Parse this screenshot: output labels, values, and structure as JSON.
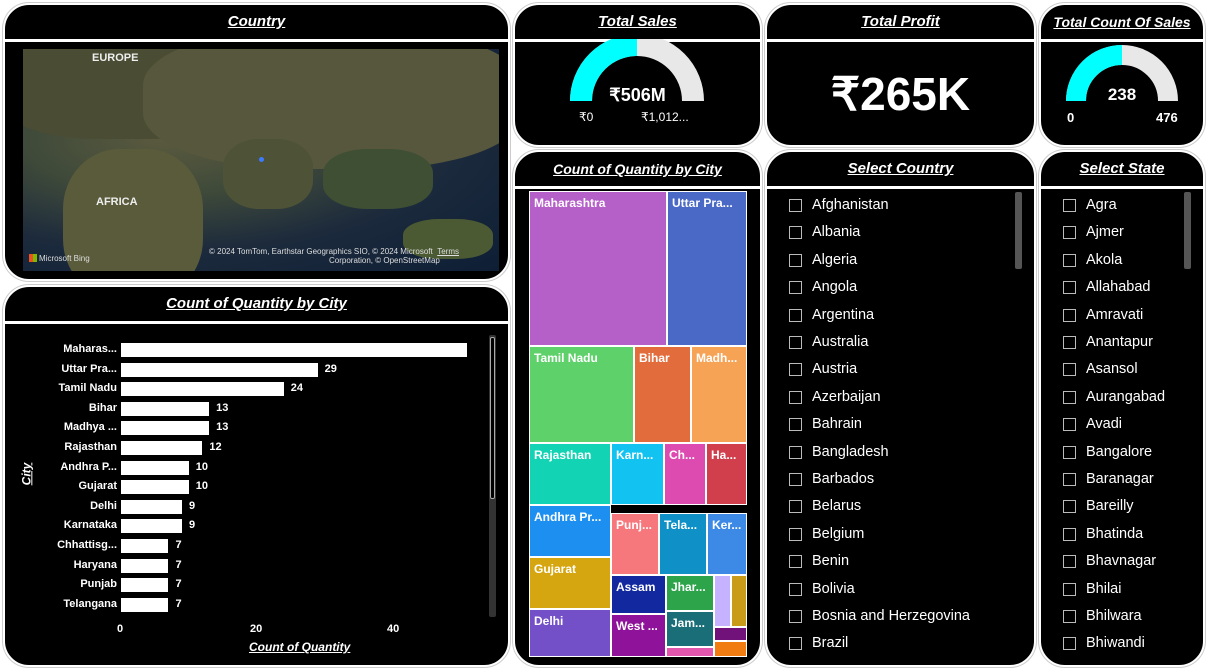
{
  "country_panel": {
    "title": "Country",
    "labels": {
      "europe": "EUROPE",
      "africa": "AFRICA"
    },
    "bing": "Microsoft Bing",
    "attribution_1": "© 2024 TomTom, Earthstar Geographics SIO, © 2024 Microsoft",
    "terms": "Terms",
    "attribution_2": "Corporation, © OpenStreetMap"
  },
  "total_sales": {
    "title": "Total Sales",
    "value": "₹506M",
    "min": "₹0",
    "max": "₹1,012...",
    "fraction": 0.5
  },
  "total_profit": {
    "title": "Total Profit",
    "value": "₹265K"
  },
  "total_count": {
    "title": "Total Count Of Sales",
    "value": "238",
    "min": "0",
    "max": "476",
    "fraction": 0.5
  },
  "bar_chart": {
    "title": "Count of Quantity by City",
    "ylabel": "City",
    "xlabel": "Count of Quantity",
    "ticks": [
      "0",
      "20",
      "40"
    ]
  },
  "chart_data": [
    {
      "type": "bar",
      "title": "Count of Quantity by City",
      "xlabel": "Count of Quantity",
      "ylabel": "City",
      "orientation": "horizontal",
      "xlim": [
        0,
        50
      ],
      "categories": [
        "Maharas...",
        "Uttar Pra...",
        "Tamil Nadu",
        "Bihar",
        "Madhya ...",
        "Rajasthan",
        "Andhra P...",
        "Gujarat",
        "Delhi",
        "Karnataka",
        "Chhattisg...",
        "Haryana",
        "Punjab",
        "Telangana"
      ],
      "values": [
        51,
        29,
        24,
        13,
        13,
        12,
        10,
        10,
        9,
        9,
        7,
        7,
        7,
        7
      ],
      "labels": [
        "",
        "29",
        "24",
        "13",
        "13",
        "12",
        "10",
        "10",
        "9",
        "9",
        "7",
        "7",
        "7",
        "7"
      ]
    }
  ],
  "treemap": {
    "title": "Count of Quantity by City",
    "cells": [
      {
        "label": "Maharashtra",
        "color": "#b55fc9"
      },
      {
        "label": "Uttar Pra...",
        "color": "#4a68c5"
      },
      {
        "label": "Tamil Nadu",
        "color": "#5fd16b"
      },
      {
        "label": "Bihar",
        "color": "#e36c3c"
      },
      {
        "label": "Madh...",
        "color": "#f6a356"
      },
      {
        "label": "Rajasthan",
        "color": "#12d3b3"
      },
      {
        "label": "Karn...",
        "color": "#12c2f0"
      },
      {
        "label": "Ch...",
        "color": "#dd4ab0"
      },
      {
        "label": "Ha...",
        "color": "#d13f4c"
      },
      {
        "label": "Andhra Pr...",
        "color": "#1d8ff0"
      },
      {
        "label": "Punj...",
        "color": "#f7787c"
      },
      {
        "label": "Tela...",
        "color": "#0f91c8"
      },
      {
        "label": "Ker...",
        "color": "#3c8ae6"
      },
      {
        "label": "Gujarat",
        "color": "#d6a611"
      },
      {
        "label": "Assam",
        "color": "#11289e"
      },
      {
        "label": "Jhar...",
        "color": "#2ea44a"
      },
      {
        "label": "",
        "color": "#c5b3ff"
      },
      {
        "label": "",
        "color": "#c89c18"
      },
      {
        "label": "Delhi",
        "color": "#7450c8"
      },
      {
        "label": "West ...",
        "color": "#8f139a"
      },
      {
        "label": "Jam...",
        "color": "#1a6e78"
      },
      {
        "label": "",
        "color": "#70127a"
      },
      {
        "label": "",
        "color": "#e356ae"
      },
      {
        "label": "",
        "color": "#f07c12"
      }
    ]
  },
  "select_country": {
    "title": "Select Country",
    "items": [
      "Afghanistan",
      "Albania",
      "Algeria",
      "Angola",
      "Argentina",
      "Australia",
      "Austria",
      "Azerbaijan",
      "Bahrain",
      "Bangladesh",
      "Barbados",
      "Belarus",
      "Belgium",
      "Benin",
      "Bolivia",
      "Bosnia and Herzegovina",
      "Brazil"
    ]
  },
  "select_state": {
    "title": "Select State",
    "items": [
      "Agra",
      "Ajmer",
      "Akola",
      "Allahabad",
      "Amravati",
      "Anantapur",
      "Asansol",
      "Aurangabad",
      "Avadi",
      "Bangalore",
      "Baranagar",
      "Bareilly",
      "Bhatinda",
      "Bhavnagar",
      "Bhilai",
      "Bhilwara",
      "Bhiwandi"
    ]
  },
  "colors": {
    "gauge_fill": "#00ffff",
    "gauge_bg": "#e8e8e8",
    "background": "#000000"
  }
}
